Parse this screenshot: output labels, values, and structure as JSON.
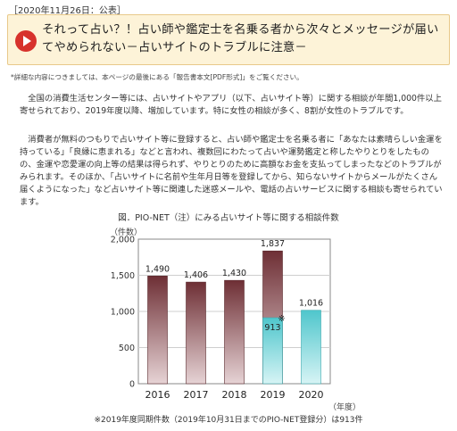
{
  "page": {
    "date": "［2020年11月26日：公表］",
    "headline": "それって占い？！占い師や鑑定士を名乗る者から次々とメッセージが届いてやめられない－占いサイトのトラブルに注意－",
    "note": "*詳細な内容につきましては、本ページの最後にある「報告書本文[PDF形式]」をご覧ください。",
    "para1": "全国の消費生活センター等には、占いサイトやアプリ（以下、占いサイト等）に関する相談が年間1,000件以上寄せられており、2019年度以降、増加しています。特に女性の相談が多く、8割が女性のトラブルです。",
    "para2": "消費者が無料のつもりで占いサイト等に登録すると、占い師や鑑定士を名乗る者に「あなたは素晴らしい金運を持っている」「良縁に恵まれる」などと言われ、複数回にわたって占いや運勢鑑定と称したやりとりをしたものの、金運や恋愛運の向上等の結果は得られず、やりとりのために高額なお金を支払ってしまったなどのトラブルがみられます。そのほか、「占いサイトに名前や生年月日等を登録してから、知らないサイトからメールがたくさん届くようになった」など占いサイト等に関連した迷惑メールや、電話の占いサービスに関する相談も寄せられています。",
    "footnote": "※2019年度同期件数（2019年10月31日までのPIO-NET登録分）は913件"
  },
  "chart_data": {
    "type": "bar",
    "title": "図．PIO-NET（注）にみる占いサイト等に関する相談件数",
    "ylabel": "（件数）",
    "xlabel": "（年度）",
    "categories": [
      "2016",
      "2017",
      "2018",
      "2019",
      "2020"
    ],
    "series": [
      {
        "values": [
          1490,
          1406,
          1430,
          1837,
          null
        ],
        "color": "#8a4b4f"
      },
      {
        "values": [
          null,
          null,
          null,
          913,
          1016
        ],
        "color": "#6dcfd3"
      }
    ],
    "labels": [
      "1,490",
      "1,406",
      "1,430",
      "1,837",
      "1,016"
    ],
    "sub_label": "913",
    "sub_marker": "※",
    "yticks": [
      "0",
      "500",
      "1,000",
      "1,500",
      "2,000"
    ],
    "ylim": [
      0,
      2000
    ],
    "grid": true
  }
}
